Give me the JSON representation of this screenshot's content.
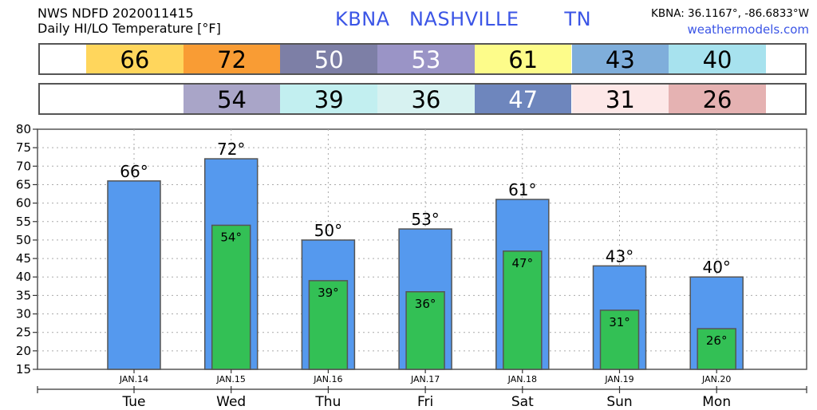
{
  "header": {
    "line1": "NWS NDFD 2020011415",
    "line2": "Daily HI/LO Temperature [°F]",
    "station": "KBNA   NASHVILLE       TN",
    "coords": "KBNA: 36.1167°, -86.6833°W",
    "site": "weathermodels.com"
  },
  "strips": {
    "hi": [
      {
        "value": "66",
        "color": "#ffd65c",
        "text": "#000000"
      },
      {
        "value": "72",
        "color": "#f99c34",
        "text": "#000000"
      },
      {
        "value": "50",
        "color": "#7d7fa6",
        "text": "#ffffff"
      },
      {
        "value": "53",
        "color": "#9a94c6",
        "text": "#ffffff"
      },
      {
        "value": "61",
        "color": "#fdfc8a",
        "text": "#000000"
      },
      {
        "value": "43",
        "color": "#7faedb",
        "text": "#000000"
      },
      {
        "value": "40",
        "color": "#a7e2ee",
        "text": "#000000"
      }
    ],
    "lo": [
      {
        "value": "",
        "color": "#ffffff",
        "text": "#000000"
      },
      {
        "value": "54",
        "color": "#a9a5c8",
        "text": "#000000"
      },
      {
        "value": "39",
        "color": "#c2eff0",
        "text": "#000000"
      },
      {
        "value": "36",
        "color": "#d7f2f1",
        "text": "#000000"
      },
      {
        "value": "47",
        "color": "#6e86bd",
        "text": "#ffffff"
      },
      {
        "value": "31",
        "color": "#fde8e8",
        "text": "#000000"
      },
      {
        "value": "26",
        "color": "#e5b2b2",
        "text": "#000000"
      }
    ]
  },
  "chart_data": {
    "type": "bar",
    "categories": [
      "Tue",
      "Wed",
      "Thu",
      "Fri",
      "Sat",
      "Sun",
      "Mon"
    ],
    "dates": [
      "JAN.14",
      "JAN.15",
      "JAN.16",
      "JAN.17",
      "JAN.18",
      "JAN.19",
      "JAN.20"
    ],
    "series": [
      {
        "values": [
          66,
          72,
          50,
          53,
          61,
          43,
          40
        ],
        "color": "#5599ee"
      },
      {
        "values": [
          null,
          54,
          39,
          36,
          47,
          31,
          26
        ],
        "color": "#33c055"
      }
    ],
    "ylim": [
      15,
      80
    ],
    "yticks": [
      15,
      20,
      25,
      30,
      35,
      40,
      45,
      50,
      55,
      60,
      65,
      70,
      75,
      80
    ],
    "hi_labels": [
      "66°",
      "72°",
      "50°",
      "53°",
      "61°",
      "43°",
      "40°"
    ],
    "lo_labels": [
      "",
      "54°",
      "39°",
      "36°",
      "47°",
      "31°",
      "26°"
    ],
    "grid": true
  }
}
